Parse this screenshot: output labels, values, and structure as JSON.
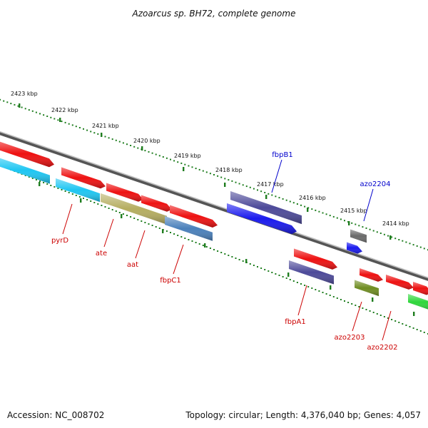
{
  "title": "Azoarcus sp. BH72, complete genome",
  "footer": {
    "accession": "Accession: NC_008702",
    "summary": "Topology: circular; Length: 4,376,040 bp; Genes: 4,057"
  },
  "scale_labels": [
    "2423 kbp",
    "2422 kbp",
    "2421 kbp",
    "2420 kbp",
    "2419 kbp",
    "2418 kbp",
    "2417 kbp",
    "2416 kbp",
    "2415 kbp",
    "2414 kbp"
  ],
  "colors": {
    "red": "#ee1111",
    "blue": "#1a1aee",
    "navy": "#4d4a99",
    "cyan": "#1ec6f2",
    "khaki": "#b5ad60",
    "steel": "#4a80bb",
    "gray": "#6a6a6a",
    "olive": "#6f8d22",
    "green": "#2fd63b",
    "tick": "#1e7d1e",
    "label_red": "#cc0000",
    "label_blue": "#0000cc"
  },
  "features": [
    {
      "name": "pyrD",
      "strand": "forward",
      "color": "red"
    },
    {
      "name": "ate",
      "strand": "forward",
      "color": "red"
    },
    {
      "name": "aat",
      "strand": "forward",
      "color": "red"
    },
    {
      "name": "fbpC1",
      "strand": "forward",
      "color": "red"
    },
    {
      "name": "fbpA1",
      "strand": "forward",
      "color": "red"
    },
    {
      "name": "azo2203",
      "strand": "forward",
      "color": "red"
    },
    {
      "name": "azo2202",
      "strand": "forward",
      "color": "red"
    },
    {
      "name": "fbpB1",
      "strand": "reverse",
      "color": "blue"
    },
    {
      "name": "azo2204",
      "strand": "reverse",
      "color": "blue"
    }
  ],
  "gene_labels": [
    {
      "text": "pyrD",
      "color": "label_red"
    },
    {
      "text": "ate",
      "color": "label_red"
    },
    {
      "text": "aat",
      "color": "label_red"
    },
    {
      "text": "fbpC1",
      "color": "label_red"
    },
    {
      "text": "fbpB1",
      "color": "label_blue"
    },
    {
      "text": "azo2204",
      "color": "label_blue"
    },
    {
      "text": "fbpA1",
      "color": "label_red"
    },
    {
      "text": "azo2203",
      "color": "label_red"
    },
    {
      "text": "azo2202",
      "color": "label_red"
    }
  ]
}
